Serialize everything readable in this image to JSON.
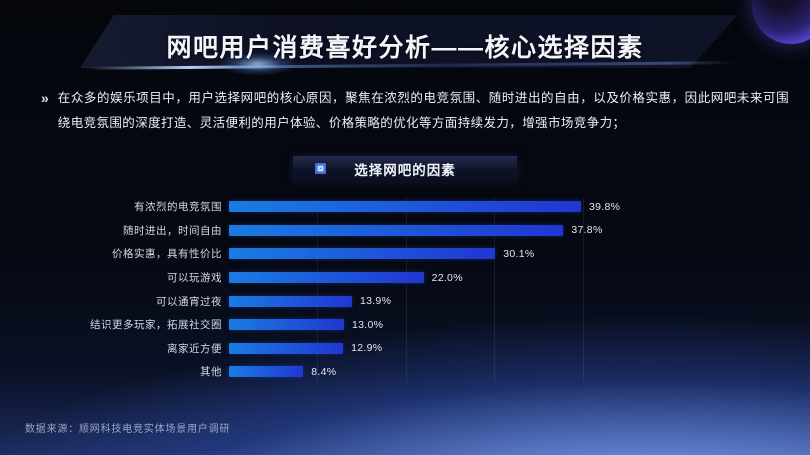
{
  "slide": {
    "title": "网吧用户消费喜好分析——核心选择因素",
    "intro_marker": "»",
    "intro_text": "在众多的娱乐项目中，用户选择网吧的核心原因，聚焦在浓烈的电竞氛围、随时进出的自由，以及价格实惠，因此网吧未来可围绕电竞氛围的深度打造、灵活便利的用户体验、价格策略的优化等方面持续发力，增强市场竞争力；",
    "source_note": "数据来源：顺网科技电竞实体场景用户调研"
  },
  "chart_data": {
    "type": "bar",
    "orientation": "horizontal",
    "title": "选择网吧的因素",
    "categories": [
      "有浓烈的电竞氛围",
      "随时进出，时间自由",
      "价格实惠，具有性价比",
      "可以玩游戏",
      "可以通宵过夜",
      "结识更多玩家，拓展社交圈",
      "离家近方便",
      "其他"
    ],
    "values": [
      39.8,
      37.8,
      30.1,
      22.0,
      13.9,
      13.0,
      12.9,
      8.4
    ],
    "value_labels": [
      "39.8%",
      "37.8%",
      "30.1%",
      "22.0%",
      "13.9%",
      "13.0%",
      "12.9%",
      "8.4%"
    ],
    "xlim": [
      0,
      45
    ],
    "gridline_values": [
      10,
      20,
      30,
      40
    ],
    "grid": true,
    "legend_position": "none",
    "bar_color_start": "#1a7ce2",
    "bar_color_end": "#2136d2"
  }
}
